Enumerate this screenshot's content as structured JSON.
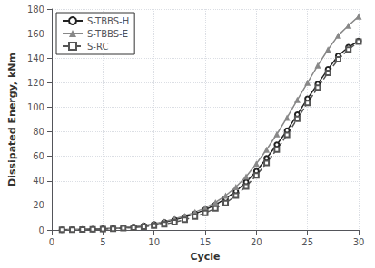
{
  "chart_data": {
    "type": "line",
    "xlabel": "Cycle",
    "ylabel": "Dissipated Energy, kNm",
    "x": [
      1,
      2,
      3,
      4,
      5,
      6,
      7,
      8,
      9,
      10,
      11,
      12,
      13,
      14,
      15,
      16,
      17,
      18,
      19,
      20,
      21,
      22,
      23,
      24,
      25,
      26,
      27,
      28,
      29,
      30
    ],
    "series": [
      {
        "name": "S-TBBS-H",
        "color": "#222222",
        "marker": "open circle",
        "line_style": "solid",
        "values": [
          0.2,
          0.4,
          0.5,
          0.7,
          1.0,
          1.3,
          1.8,
          2.5,
          3.4,
          4.6,
          6.2,
          8.2,
          10.5,
          13.2,
          16.5,
          20.5,
          25.5,
          31.5,
          39.0,
          48.0,
          58.5,
          69.5,
          81.0,
          94.0,
          107.0,
          119.0,
          131.0,
          142.0,
          149.0,
          154.0
        ]
      },
      {
        "name": "S-TBBS-E",
        "color": "#888888",
        "marker": "triangle",
        "line_style": "solid",
        "values": [
          0.2,
          0.4,
          0.5,
          0.7,
          1.0,
          1.4,
          1.9,
          2.7,
          3.7,
          5.0,
          6.8,
          9.0,
          11.5,
          14.5,
          18.0,
          22.5,
          28.0,
          35.0,
          43.5,
          54.0,
          65.5,
          78.0,
          91.5,
          106.0,
          120.0,
          134.0,
          147.0,
          158.5,
          166.5,
          174.0
        ]
      },
      {
        "name": "S-RC",
        "color": "#555555",
        "marker": "open square",
        "line_style": "dashed",
        "values": [
          0.1,
          0.2,
          0.3,
          0.5,
          0.7,
          1.0,
          1.4,
          1.9,
          2.6,
          3.5,
          4.7,
          6.3,
          8.3,
          10.8,
          13.8,
          17.5,
          22.0,
          28.0,
          35.5,
          44.5,
          54.5,
          65.5,
          77.5,
          90.5,
          103.5,
          116.0,
          128.0,
          139.0,
          147.0,
          153.5
        ]
      }
    ],
    "xlim": [
      0,
      30
    ],
    "ylim": [
      0,
      180
    ],
    "xticks": [
      0,
      5,
      10,
      15,
      20,
      25,
      30
    ],
    "yticks": [
      0,
      20,
      40,
      60,
      80,
      100,
      120,
      140,
      160,
      180
    ],
    "grid": true,
    "legend": "upper left"
  }
}
